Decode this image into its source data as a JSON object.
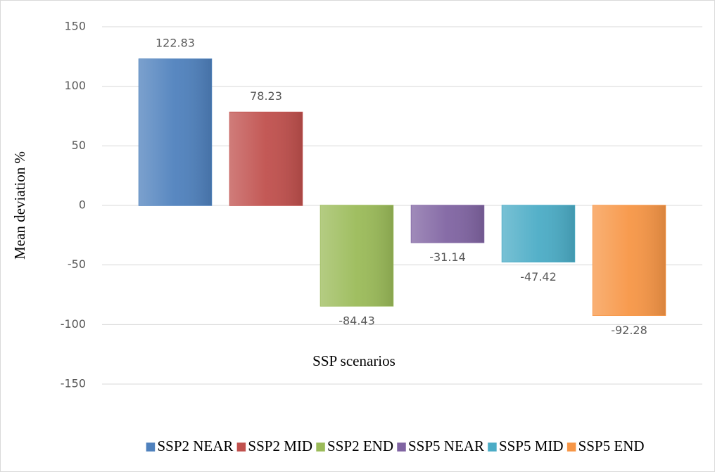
{
  "chart_data": {
    "type": "bar",
    "y_label": "Mean deviation %",
    "x_label": "SSP scenarios",
    "series": [
      {
        "name": "SSP2 NEAR",
        "color": "#4f81bd",
        "values": [
          122.83
        ]
      },
      {
        "name": "SSP2 MID",
        "color": "#c0504d",
        "values": [
          78.23
        ]
      },
      {
        "name": "SSP2 END",
        "color": "#9bbb59",
        "values": [
          -84.43
        ]
      },
      {
        "name": "SSP5 NEAR",
        "color": "#8064a2",
        "values": [
          -31.14
        ]
      },
      {
        "name": "SSP5 MID",
        "color": "#4bacc6",
        "values": [
          -47.42
        ]
      },
      {
        "name": "SSP5 END",
        "color": "#f79646",
        "values": [
          -92.28
        ]
      }
    ],
    "ylim": [
      -150,
      150
    ],
    "yticks": [
      -150,
      -100,
      -50,
      0,
      50,
      100,
      150
    ],
    "grid": true,
    "legend": "bottom"
  }
}
